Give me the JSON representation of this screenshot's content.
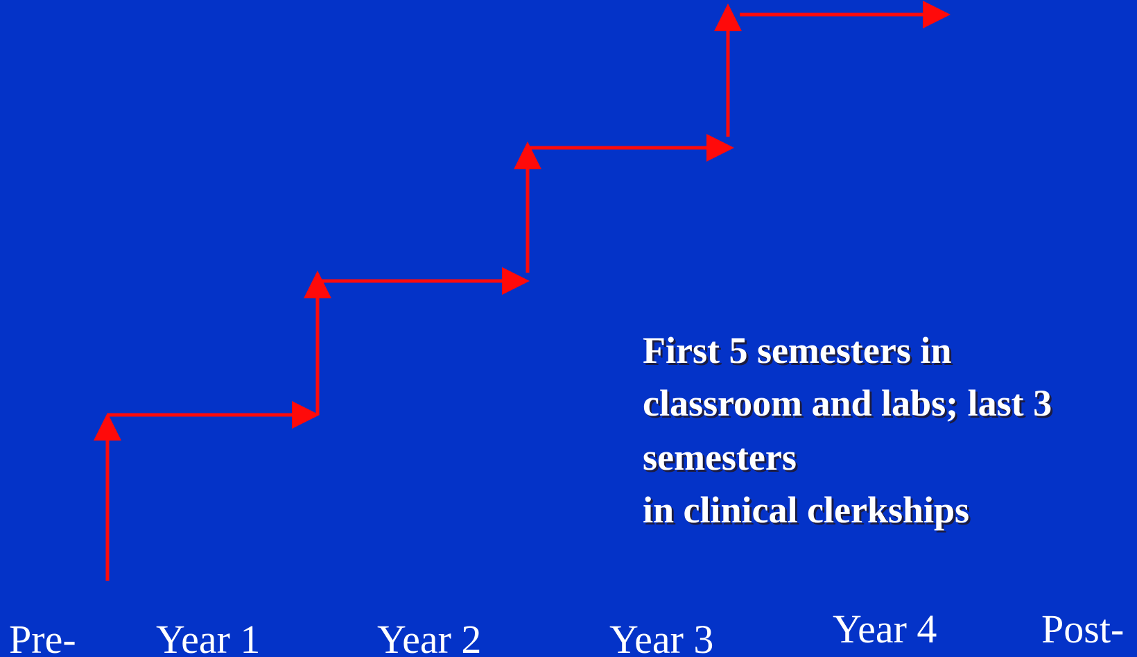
{
  "annotation": {
    "lines": [
      "First 5 semesters in",
      "classroom and labs; last 3",
      "semesters",
      "in clinical clerkships"
    ]
  },
  "timeline": {
    "labels": [
      "Pre-",
      "Year 1",
      "Year 2",
      "Year 3",
      "Year 4",
      "Post-"
    ]
  }
}
